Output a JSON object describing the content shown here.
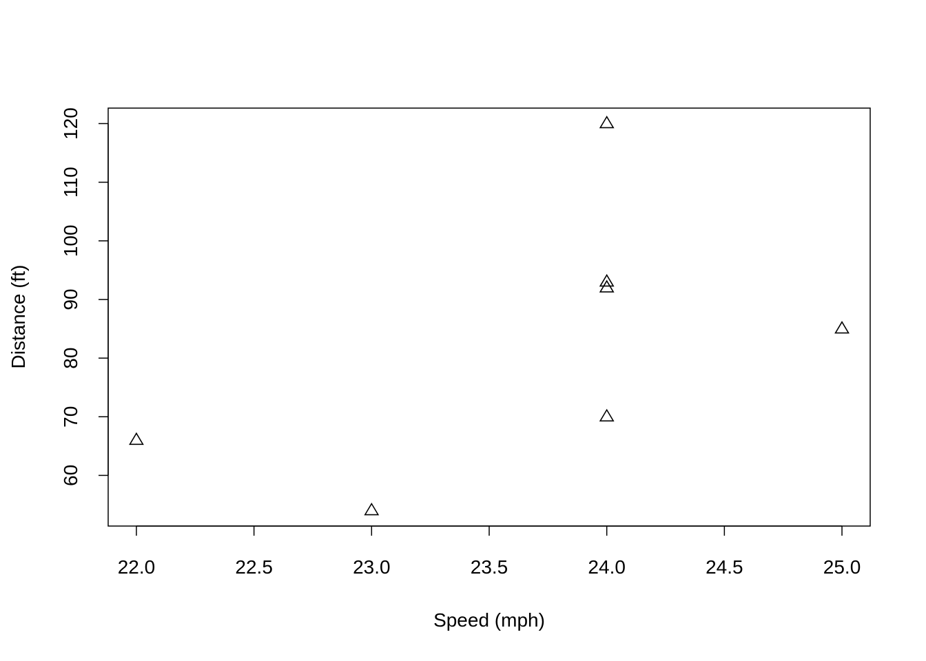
{
  "chart_data": {
    "type": "scatter",
    "title": "",
    "xlabel": "Speed (mph)",
    "ylabel": "Distance (ft)",
    "xlim": [
      21.88,
      25.12
    ],
    "ylim": [
      51.36,
      122.64
    ],
    "x_ticks": [
      22.0,
      22.5,
      23.0,
      23.5,
      24.0,
      24.5,
      25.0
    ],
    "x_tick_labels": [
      "22.0",
      "22.5",
      "23.0",
      "23.5",
      "24.0",
      "24.5",
      "25.0"
    ],
    "y_ticks": [
      60,
      70,
      80,
      90,
      100,
      110,
      120
    ],
    "y_tick_labels": [
      "60",
      "70",
      "80",
      "90",
      "100",
      "110",
      "120"
    ],
    "marker": "open-triangle",
    "grid": false,
    "series": [
      {
        "points": [
          {
            "x": 22,
            "y": 66
          },
          {
            "x": 23,
            "y": 54
          },
          {
            "x": 24,
            "y": 70
          },
          {
            "x": 24,
            "y": 92
          },
          {
            "x": 24,
            "y": 93
          },
          {
            "x": 24,
            "y": 120
          },
          {
            "x": 25,
            "y": 85
          }
        ]
      }
    ]
  }
}
